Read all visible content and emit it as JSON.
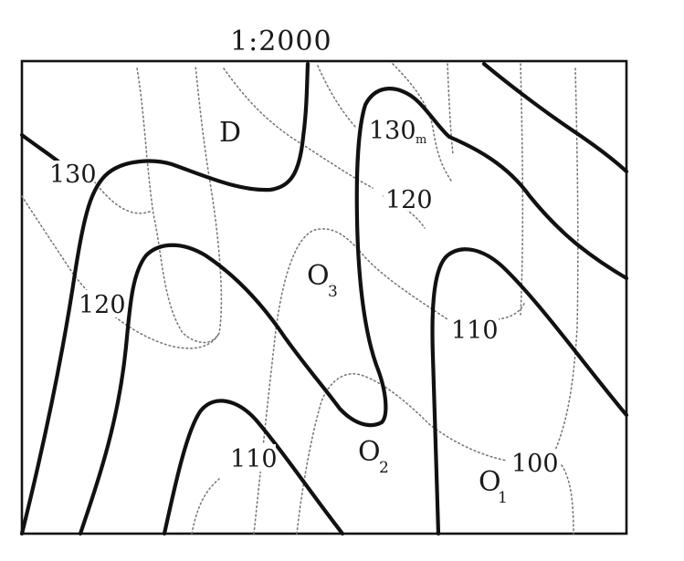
{
  "map": {
    "scale": "1:2000",
    "labels": {
      "area_d": "D",
      "contour_130_left": "130",
      "contour_130_top": "130",
      "contour_130_top_suffix": "m",
      "contour_120_top": "120",
      "contour_120_left": "120",
      "contour_110_right": "110",
      "contour_110_bottom": "110",
      "contour_100": "100",
      "point_o3": "O",
      "point_o3_sub": "3",
      "point_o2": "O",
      "point_o2_sub": "2",
      "point_o1": "O",
      "point_o1_sub": "1"
    }
  }
}
